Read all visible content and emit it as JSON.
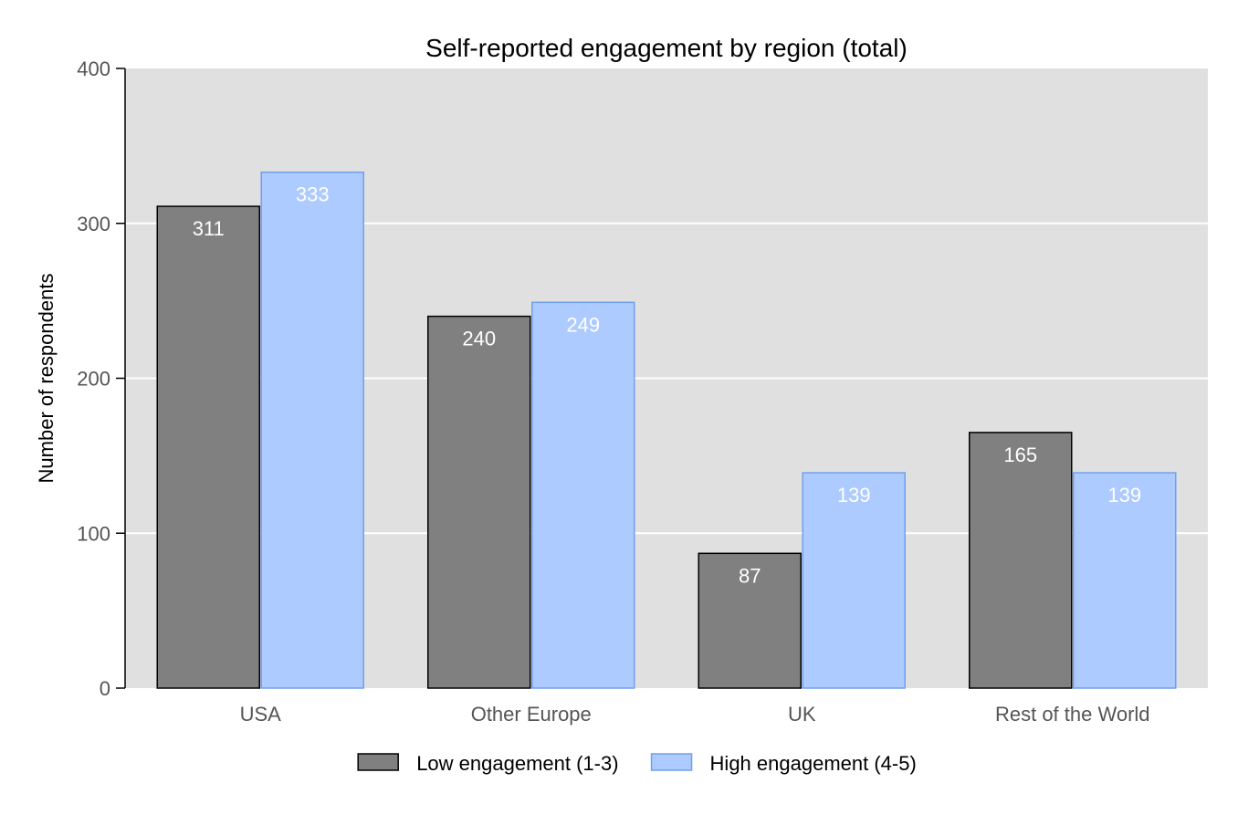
{
  "chart_data": {
    "type": "bar",
    "title": "Self-reported engagement by region (total)",
    "xlabel": "",
    "ylabel": "Number of respondents",
    "ylim": [
      0,
      400
    ],
    "yticks": [
      0,
      100,
      200,
      300,
      400
    ],
    "grid": true,
    "legend_position": "bottom",
    "categories": [
      "USA",
      "Other Europe",
      "UK",
      "Rest of the World"
    ],
    "series": [
      {
        "name": "Low engagement (1-3)",
        "values": [
          311,
          240,
          87,
          165
        ],
        "fill": "#808080",
        "stroke": "#000000"
      },
      {
        "name": "High engagement (4-5)",
        "values": [
          333,
          249,
          139,
          139
        ],
        "fill": "#aecbff",
        "stroke": "#6f9ff0"
      }
    ],
    "colors": {
      "panel_background": "#e0e0e0",
      "gridline": "#ffffff",
      "bar_label": "#ffffff"
    }
  }
}
